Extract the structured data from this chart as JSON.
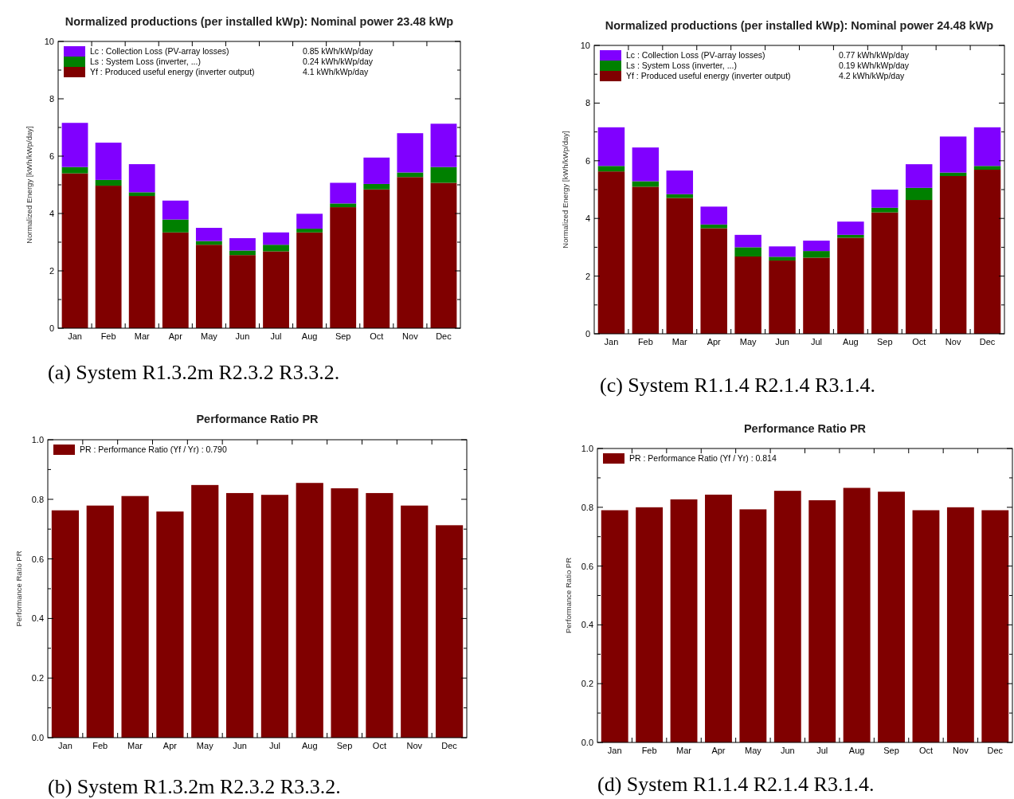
{
  "chart_data": [
    {
      "type": "bar",
      "title": "Normalized productions (per installed kWp):  Nominal power 23.48 kWp",
      "ylabel": "Normalized   Energy   [kWh/kWp/day]",
      "categories": [
        "Jan",
        "Feb",
        "Mar",
        "Apr",
        "May",
        "Jun",
        "Jul",
        "Aug",
        "Sep",
        "Oct",
        "Nov",
        "Dec"
      ],
      "stacked": true,
      "legend": "top left",
      "ylim": [
        0,
        10
      ],
      "yticks": [
        0,
        {
          "value": 1,
          "label": null
        },
        2,
        {
          "value": 3,
          "label": null
        },
        4,
        {
          "value": 5,
          "label": null
        },
        6,
        {
          "value": 7,
          "label": null
        },
        8,
        {
          "value": 9,
          "label": null
        },
        10
      ],
      "series": [
        {
          "name": "Yf : Produced useful energy  (inverter output)",
          "color": "#800000",
          "values": [
            5.4,
            4.97,
            4.61,
            3.34,
            2.91,
            2.55,
            2.68,
            3.34,
            4.22,
            4.84,
            5.27,
            5.07
          ]
        },
        {
          "name": "Ls : System Loss  (inverter, ...)",
          "color": "#008000",
          "values": [
            0.22,
            0.2,
            0.13,
            0.45,
            0.13,
            0.16,
            0.23,
            0.13,
            0.13,
            0.19,
            0.16,
            0.55
          ]
        },
        {
          "name": "Lc : Collection Loss (PV-array losses)",
          "color": "#8000ff",
          "values": [
            1.54,
            1.3,
            0.98,
            0.66,
            0.46,
            0.43,
            0.43,
            0.52,
            0.72,
            0.92,
            1.37,
            1.51
          ]
        }
      ],
      "annotations": [
        "0.85 kWh/kWp/day",
        "0.24 kWh/kWp/day",
        "4.1 kWh/kWp/day",
        "(a) System R1.3.2m R2.3.2 R3.3.2."
      ]
    },
    {
      "type": "bar",
      "title": "Normalized productions (per installed kWp):  Nominal power 24.48 kWp",
      "ylabel": "Normalized   Energy   [kWh/kWp/day]",
      "categories": [
        "Jan",
        "Feb",
        "Mar",
        "Apr",
        "May",
        "Jun",
        "Jul",
        "Aug",
        "Sep",
        "Oct",
        "Nov",
        "Dec"
      ],
      "stacked": true,
      "legend": "top left",
      "ylim": [
        0,
        10
      ],
      "yticks": [
        0,
        {
          "value": 1,
          "label": null
        },
        2,
        {
          "value": 3,
          "label": null
        },
        4,
        {
          "value": 5,
          "label": null
        },
        6,
        {
          "value": 7,
          "label": null
        },
        8,
        {
          "value": 9,
          "label": null
        },
        10
      ],
      "series": [
        {
          "name": "Yf : Produced useful energy  (inverter output)",
          "color": "#800000",
          "values": [
            5.63,
            5.1,
            4.71,
            3.66,
            2.68,
            2.54,
            2.64,
            3.33,
            4.21,
            4.64,
            5.47,
            5.69
          ]
        },
        {
          "name": "Ls : System Loss  (inverter, ...)",
          "color": "#008000",
          "values": [
            0.19,
            0.19,
            0.13,
            0.13,
            0.32,
            0.13,
            0.23,
            0.1,
            0.16,
            0.42,
            0.12,
            0.13
          ]
        },
        {
          "name": "Lc : Collection Loss (PV-array losses)",
          "color": "#8000ff",
          "values": [
            1.34,
            1.17,
            0.82,
            0.62,
            0.43,
            0.36,
            0.36,
            0.46,
            0.63,
            0.82,
            1.25,
            1.34
          ]
        }
      ],
      "annotations": [
        "0.77 kWh/kWp/day",
        "0.19 kWh/kWp/day",
        "4.2 kWh/kWp/day",
        "(c) System R1.1.4 R2.1.4 R3.1.4."
      ]
    },
    {
      "type": "bar",
      "title": "Performance  Ratio  PR",
      "ylabel": "Performance  Ratio  PR",
      "categories": [
        "Jan",
        "Feb",
        "Mar",
        "Apr",
        "May",
        "Jun",
        "Jul",
        "Aug",
        "Sep",
        "Oct",
        "Nov",
        "Dec"
      ],
      "legend": "top left",
      "ylim": [
        0,
        1
      ],
      "yticks": [
        {
          "value": 0,
          "label": "0.0"
        },
        {
          "value": 0.1,
          "label": null
        },
        0.2,
        {
          "value": 0.3,
          "label": null
        },
        0.4,
        {
          "value": 0.5,
          "label": null
        },
        0.6,
        {
          "value": 0.7,
          "label": null
        },
        0.8,
        {
          "value": 0.9,
          "label": null
        },
        {
          "value": 1,
          "label": "1.0"
        }
      ],
      "series": [
        {
          "name": "PR : Performance Ratio (Yf / Yr) :  0.790",
          "color": "#800000",
          "values": [
            0.763,
            0.779,
            0.811,
            0.759,
            0.848,
            0.821,
            0.815,
            0.855,
            0.837,
            0.821,
            0.779,
            0.713
          ]
        }
      ],
      "annotations": [
        "(b) System R1.3.2m R2.3.2 R3.3.2."
      ]
    },
    {
      "type": "bar",
      "title": "Performance  Ratio  PR",
      "ylabel": "Performance  Ratio  PR",
      "categories": [
        "Jan",
        "Feb",
        "Mar",
        "Apr",
        "May",
        "Jun",
        "Jul",
        "Aug",
        "Sep",
        "Oct",
        "Nov",
        "Dec"
      ],
      "legend": "top left",
      "ylim": [
        0,
        1
      ],
      "yticks": [
        {
          "value": 0,
          "label": "0.0"
        },
        {
          "value": 0.1,
          "label": null
        },
        0.2,
        {
          "value": 0.3,
          "label": null
        },
        0.4,
        {
          "value": 0.5,
          "label": null
        },
        0.6,
        {
          "value": 0.7,
          "label": null
        },
        0.8,
        {
          "value": 0.9,
          "label": null
        },
        {
          "value": 1,
          "label": "1.0"
        }
      ],
      "series": [
        {
          "name": "PR : Performance Ratio (Yf / Yr) :  0.814",
          "color": "#800000",
          "values": [
            0.79,
            0.8,
            0.827,
            0.843,
            0.793,
            0.856,
            0.824,
            0.866,
            0.853,
            0.79,
            0.8,
            0.79
          ]
        }
      ],
      "annotations": [
        "(d) System R1.1.4 R2.1.4 R3.1.4."
      ]
    }
  ]
}
